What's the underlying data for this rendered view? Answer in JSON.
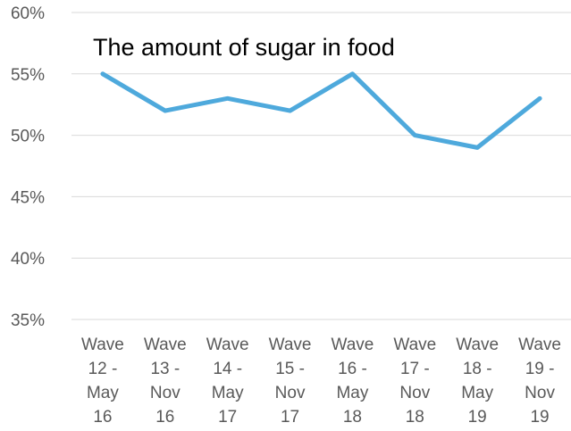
{
  "chart_data": {
    "type": "line",
    "title": "The amount of sugar in food",
    "xlabel": "",
    "ylabel": "",
    "categories": [
      [
        "Wave",
        "12 -",
        "May",
        "16"
      ],
      [
        "Wave",
        "13 -",
        "Nov",
        "16"
      ],
      [
        "Wave",
        "14 -",
        "May",
        "17"
      ],
      [
        "Wave",
        "15 -",
        "Nov",
        "17"
      ],
      [
        "Wave",
        "16 -",
        "May",
        "18"
      ],
      [
        "Wave",
        "17 -",
        "Nov",
        "18"
      ],
      [
        "Wave",
        "18 -",
        "May",
        "19"
      ],
      [
        "Wave",
        "19 -",
        "Nov",
        "19"
      ]
    ],
    "series": [
      {
        "values": [
          55,
          52,
          53,
          52,
          55,
          50,
          49,
          53
        ]
      }
    ],
    "yticks": [
      "35%",
      "40%",
      "45%",
      "50%",
      "55%",
      "60%"
    ],
    "ylim": [
      35,
      60
    ],
    "grid": true,
    "line_color": "#4ea9dc",
    "grid_color": "#d9d9d9",
    "tick_color": "#595959"
  }
}
